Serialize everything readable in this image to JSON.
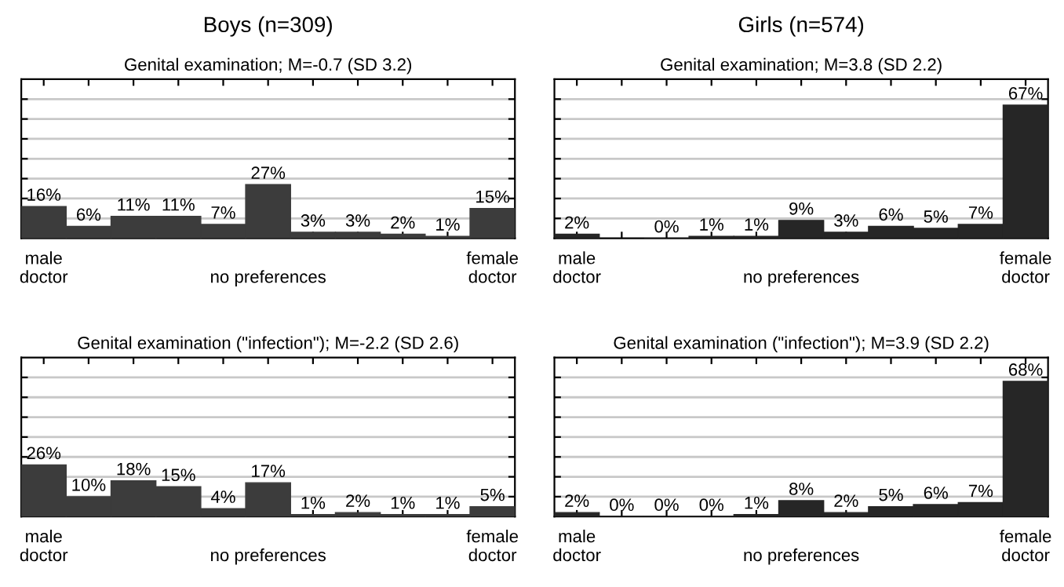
{
  "chart_data": [
    {
      "type": "bar",
      "title": "Boys (n=309)",
      "subtitle": "Genital examination; M=-0.7 (SD 3.2)",
      "categories": [
        "male\ndoctor",
        null,
        null,
        null,
        null,
        "\nno preferences",
        null,
        null,
        null,
        null,
        "female\ndoctor"
      ],
      "values": [
        16,
        6,
        11,
        11,
        7,
        27,
        3,
        3,
        2,
        1,
        15
      ],
      "value_labels": [
        "16%",
        "6%",
        "11%",
        "11%",
        "7%",
        "27%",
        "3%",
        "3%",
        "2%",
        "1%",
        "15%"
      ],
      "color": "#3c3c3c",
      "ylim": [
        0,
        80
      ],
      "yticks": [
        {
          "value": 10,
          "label": null
        },
        {
          "value": 20,
          "label": null
        },
        {
          "value": 30,
          "label": null
        },
        {
          "value": 40,
          "label": null
        },
        {
          "value": 50,
          "label": null
        },
        {
          "value": 60,
          "label": null
        },
        {
          "value": 70,
          "label": null
        }
      ],
      "grid": "y",
      "tick_labels": "x"
    },
    {
      "type": "bar",
      "title": "Girls (n=574)",
      "subtitle": "Genital examination; M=3.8 (SD 2.2)",
      "categories": [
        "male\ndoctor",
        null,
        null,
        null,
        null,
        "\nno preferences",
        null,
        null,
        null,
        null,
        "female\ndoctor"
      ],
      "values": [
        2,
        null,
        0,
        1,
        1,
        9,
        3,
        6,
        5,
        7,
        67
      ],
      "value_labels": [
        "2%",
        null,
        "0%",
        "1%",
        "1%",
        "9%",
        "3%",
        "6%",
        "5%",
        "7%",
        "67%"
      ],
      "color": "#262626",
      "ylim": [
        0,
        80
      ],
      "yticks": [
        {
          "value": 10,
          "label": null
        },
        {
          "value": 20,
          "label": null
        },
        {
          "value": 30,
          "label": null
        },
        {
          "value": 40,
          "label": null
        },
        {
          "value": 50,
          "label": null
        },
        {
          "value": 60,
          "label": null
        },
        {
          "value": 70,
          "label": null
        }
      ],
      "grid": "y",
      "tick_labels": "x"
    },
    {
      "type": "bar",
      "subtitle": "Genital examination (\"infection\"); M=-2.2 (SD 2.6)",
      "categories": [
        "male\ndoctor",
        null,
        null,
        null,
        null,
        "\nno preferences",
        null,
        null,
        null,
        null,
        "female\ndoctor"
      ],
      "values": [
        26,
        10,
        18,
        15,
        4,
        17,
        1,
        2,
        1,
        1,
        5
      ],
      "value_labels": [
        "26%",
        "10%",
        "18%",
        "15%",
        "4%",
        "17%",
        "1%",
        "2%",
        "1%",
        "1%",
        "5%"
      ],
      "color": "#3c3c3c",
      "ylim": [
        0,
        80
      ],
      "yticks": [
        {
          "value": 10,
          "label": null
        },
        {
          "value": 20,
          "label": null
        },
        {
          "value": 30,
          "label": null
        },
        {
          "value": 40,
          "label": null
        },
        {
          "value": 50,
          "label": null
        },
        {
          "value": 60,
          "label": null
        },
        {
          "value": 70,
          "label": null
        }
      ],
      "grid": "y",
      "tick_labels": "x"
    },
    {
      "type": "bar",
      "subtitle": "Genital examination (\"infection\"); M=3.9 (SD 2.2)",
      "categories": [
        "male\ndoctor",
        null,
        null,
        null,
        null,
        "\nno preferences",
        null,
        null,
        null,
        null,
        "female\ndoctor"
      ],
      "values": [
        2,
        0,
        0,
        0,
        1,
        8,
        2,
        5,
        6,
        7,
        68
      ],
      "value_labels": [
        "2%",
        "0%",
        "0%",
        "0%",
        "1%",
        "8%",
        "2%",
        "5%",
        "6%",
        "7%",
        "68%"
      ],
      "color": "#262626",
      "ylim": [
        0,
        80
      ],
      "yticks": [
        {
          "value": 10,
          "label": null
        },
        {
          "value": 20,
          "label": null
        },
        {
          "value": 30,
          "label": null
        },
        {
          "value": 40,
          "label": null
        },
        {
          "value": 50,
          "label": null
        },
        {
          "value": 60,
          "label": null
        },
        {
          "value": 70,
          "label": null
        }
      ],
      "grid": "y",
      "tick_labels": "x"
    }
  ]
}
